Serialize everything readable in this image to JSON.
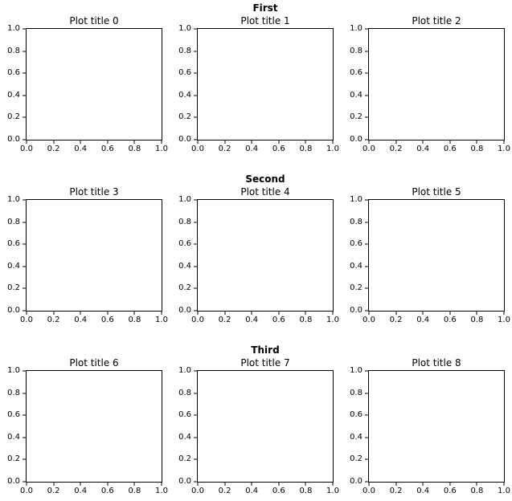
{
  "figure": {
    "background": "#ffffff",
    "text_color": "#000000",
    "axis_color": "#000000",
    "row_titles": [
      "First",
      "Second",
      "Third"
    ],
    "subplot_titles": [
      "Plot title 0",
      "Plot title 1",
      "Plot title 2",
      "Plot title 3",
      "Plot title 4",
      "Plot title 5",
      "Plot title 6",
      "Plot title 7",
      "Plot title 8"
    ],
    "axes": {
      "x_ticks": [
        "0.0",
        "0.2",
        "0.4",
        "0.6",
        "0.8",
        "1.0"
      ],
      "y_ticks": [
        "1.0",
        "0.8",
        "0.6",
        "0.4",
        "0.2",
        "0.0"
      ]
    }
  },
  "chart_data": [
    {
      "type": "line",
      "title": "Plot title 0",
      "group": "First",
      "series": [],
      "xlim": [
        0.0,
        1.0
      ],
      "ylim": [
        0.0,
        1.0
      ],
      "xticks": [
        0.0,
        0.2,
        0.4,
        0.6,
        0.8,
        1.0
      ],
      "yticks": [
        0.0,
        0.2,
        0.4,
        0.6,
        0.8,
        1.0
      ],
      "grid": false
    },
    {
      "type": "line",
      "title": "Plot title 1",
      "group": "First",
      "series": [],
      "xlim": [
        0.0,
        1.0
      ],
      "ylim": [
        0.0,
        1.0
      ],
      "xticks": [
        0.0,
        0.2,
        0.4,
        0.6,
        0.8,
        1.0
      ],
      "yticks": [
        0.0,
        0.2,
        0.4,
        0.6,
        0.8,
        1.0
      ],
      "grid": false
    },
    {
      "type": "line",
      "title": "Plot title 2",
      "group": "First",
      "series": [],
      "xlim": [
        0.0,
        1.0
      ],
      "ylim": [
        0.0,
        1.0
      ],
      "xticks": [
        0.0,
        0.2,
        0.4,
        0.6,
        0.8,
        1.0
      ],
      "yticks": [
        0.0,
        0.2,
        0.4,
        0.6,
        0.8,
        1.0
      ],
      "grid": false
    },
    {
      "type": "line",
      "title": "Plot title 3",
      "group": "Second",
      "series": [],
      "xlim": [
        0.0,
        1.0
      ],
      "ylim": [
        0.0,
        1.0
      ],
      "xticks": [
        0.0,
        0.2,
        0.4,
        0.6,
        0.8,
        1.0
      ],
      "yticks": [
        0.0,
        0.2,
        0.4,
        0.6,
        0.8,
        1.0
      ],
      "grid": false
    },
    {
      "type": "line",
      "title": "Plot title 4",
      "group": "Second",
      "series": [],
      "xlim": [
        0.0,
        1.0
      ],
      "ylim": [
        0.0,
        1.0
      ],
      "xticks": [
        0.0,
        0.2,
        0.4,
        0.6,
        0.8,
        1.0
      ],
      "yticks": [
        0.0,
        0.2,
        0.4,
        0.6,
        0.8,
        1.0
      ],
      "grid": false
    },
    {
      "type": "line",
      "title": "Plot title 5",
      "group": "Second",
      "series": [],
      "xlim": [
        0.0,
        1.0
      ],
      "ylim": [
        0.0,
        1.0
      ],
      "xticks": [
        0.0,
        0.2,
        0.4,
        0.6,
        0.8,
        1.0
      ],
      "yticks": [
        0.0,
        0.2,
        0.4,
        0.6,
        0.8,
        1.0
      ],
      "grid": false
    },
    {
      "type": "line",
      "title": "Plot title 6",
      "group": "Third",
      "series": [],
      "xlim": [
        0.0,
        1.0
      ],
      "ylim": [
        0.0,
        1.0
      ],
      "xticks": [
        0.0,
        0.2,
        0.4,
        0.6,
        0.8,
        1.0
      ],
      "yticks": [
        0.0,
        0.2,
        0.4,
        0.6,
        0.8,
        1.0
      ],
      "grid": false
    },
    {
      "type": "line",
      "title": "Plot title 7",
      "group": "Third",
      "series": [],
      "xlim": [
        0.0,
        1.0
      ],
      "ylim": [
        0.0,
        1.0
      ],
      "xticks": [
        0.0,
        0.2,
        0.4,
        0.6,
        0.8,
        1.0
      ],
      "yticks": [
        0.0,
        0.2,
        0.4,
        0.6,
        0.8,
        1.0
      ],
      "grid": false
    },
    {
      "type": "line",
      "title": "Plot title 8",
      "group": "Third",
      "series": [],
      "xlim": [
        0.0,
        1.0
      ],
      "ylim": [
        0.0,
        1.0
      ],
      "xticks": [
        0.0,
        0.2,
        0.4,
        0.6,
        0.8,
        1.0
      ],
      "yticks": [
        0.0,
        0.2,
        0.4,
        0.6,
        0.8,
        1.0
      ],
      "grid": false
    }
  ]
}
